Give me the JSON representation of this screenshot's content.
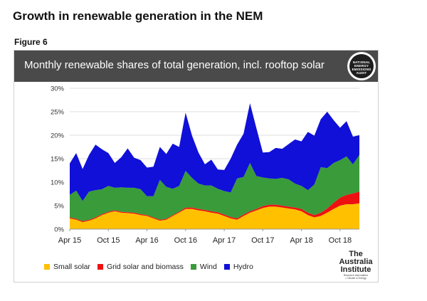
{
  "page_title": "Growth in renewable generation in the NEM",
  "figure_label": "Figure 6",
  "badge": {
    "lines": [
      "NATIONAL",
      "ENERGY",
      "EMISSIONS",
      "AUDIT"
    ]
  },
  "logo": {
    "line1": "The Australia",
    "line2": "Institute",
    "tagline": "Research that matters",
    "sub": "• Climate & Energy"
  },
  "colors": {
    "small_solar": "#ffc000",
    "grid_solar": "#ee1111",
    "wind": "#3a9b3a",
    "hydro": "#1010d8",
    "banner": "#4a4a4a"
  },
  "chart_data": {
    "type": "area",
    "stacked": true,
    "title": "Monthly renewable shares of total generation, incl. rooftop solar",
    "xlabel": "",
    "ylabel": "",
    "ylim": [
      0,
      30
    ],
    "yticks": [
      "0%",
      "5%",
      "10%",
      "15%",
      "20%",
      "25%",
      "30%"
    ],
    "xticks": [
      "Apr 15",
      "Oct 15",
      "Apr 16",
      "Oct 16",
      "Apr 17",
      "Oct 17",
      "Apr 18",
      "Oct 18"
    ],
    "grid": true,
    "legend_position": "bottom-left",
    "x": [
      "Apr 15",
      "May 15",
      "Jun 15",
      "Jul 15",
      "Aug 15",
      "Sep 15",
      "Oct 15",
      "Nov 15",
      "Dec 15",
      "Jan 16",
      "Feb 16",
      "Mar 16",
      "Apr 16",
      "May 16",
      "Jun 16",
      "Jul 16",
      "Aug 16",
      "Sep 16",
      "Oct 16",
      "Nov 16",
      "Dec 16",
      "Jan 17",
      "Feb 17",
      "Mar 17",
      "Apr 17",
      "May 17",
      "Jun 17",
      "Jul 17",
      "Aug 17",
      "Sep 17",
      "Oct 17",
      "Nov 17",
      "Dec 17",
      "Jan 18",
      "Feb 18",
      "Mar 18",
      "Apr 18",
      "May 18",
      "Jun 18",
      "Jul 18",
      "Aug 18",
      "Sep 18",
      "Oct 18",
      "Nov 18",
      "Dec 18",
      "Jan 19"
    ],
    "series": [
      {
        "name": "Small solar",
        "color": "#ffc000",
        "values": [
          2.3,
          2.0,
          1.5,
          1.8,
          2.3,
          3.0,
          3.5,
          3.8,
          3.5,
          3.4,
          3.3,
          3.0,
          2.8,
          2.3,
          1.8,
          2.0,
          2.8,
          3.5,
          4.3,
          4.3,
          4.0,
          3.8,
          3.5,
          3.3,
          2.8,
          2.3,
          2.0,
          2.8,
          3.5,
          4.0,
          4.5,
          4.8,
          4.8,
          4.6,
          4.4,
          4.2,
          3.8,
          3.0,
          2.5,
          2.8,
          3.5,
          4.3,
          5.0,
          5.3,
          5.3,
          5.5
        ]
      },
      {
        "name": "Grid solar and biomass",
        "color": "#ee1111",
        "values": [
          0.2,
          0.2,
          0.2,
          0.2,
          0.2,
          0.2,
          0.2,
          0.2,
          0.2,
          0.2,
          0.2,
          0.2,
          0.2,
          0.2,
          0.2,
          0.2,
          0.2,
          0.2,
          0.3,
          0.3,
          0.3,
          0.3,
          0.3,
          0.3,
          0.3,
          0.3,
          0.3,
          0.3,
          0.3,
          0.3,
          0.4,
          0.4,
          0.4,
          0.4,
          0.4,
          0.4,
          0.5,
          0.5,
          0.5,
          0.7,
          0.9,
          1.3,
          1.7,
          2.0,
          2.3,
          2.5
        ]
      },
      {
        "name": "Wind",
        "color": "#3a9b3a",
        "values": [
          4.8,
          6.0,
          4.3,
          6.0,
          5.8,
          5.3,
          5.5,
          4.8,
          5.2,
          5.2,
          5.3,
          5.3,
          4.0,
          4.5,
          8.5,
          6.8,
          5.6,
          5.5,
          7.8,
          6.3,
          5.4,
          5.2,
          5.5,
          5.0,
          5.0,
          5.2,
          8.5,
          8.0,
          10.3,
          7.0,
          6.1,
          5.6,
          5.5,
          5.9,
          5.8,
          5.1,
          4.9,
          4.8,
          6.5,
          9.7,
          8.6,
          8.5,
          8.0,
          8.2,
          6.2,
          7.8
        ]
      },
      {
        "name": "Hydro",
        "color": "#1010d8",
        "values": [
          6.7,
          8.0,
          6.8,
          7.8,
          9.7,
          8.5,
          7.0,
          5.3,
          6.4,
          8.4,
          6.4,
          6.2,
          6.1,
          6.3,
          7.0,
          7.0,
          9.6,
          8.3,
          12.4,
          9.0,
          6.6,
          4.5,
          5.5,
          4.1,
          4.5,
          7.2,
          7.2,
          9.2,
          12.7,
          10.2,
          5.3,
          5.6,
          6.6,
          6.2,
          7.5,
          9.4,
          9.5,
          12.4,
          10.4,
          10.2,
          12.0,
          9.1,
          6.9,
          7.5,
          5.9,
          4.2
        ]
      }
    ]
  }
}
